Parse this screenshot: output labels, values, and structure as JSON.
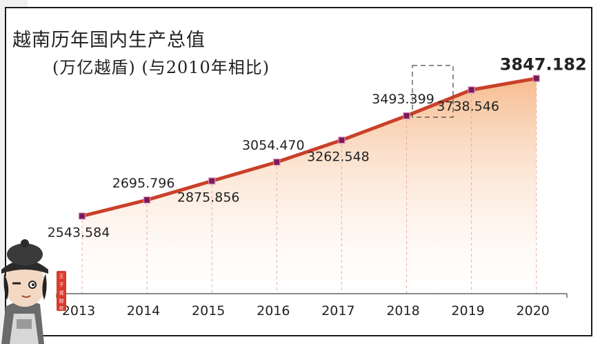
{
  "title_prefix": "越南",
  "title_main": "历年国内生产总值",
  "subtitle": "(万亿越盾) (与2010年相比)",
  "chart_data": {
    "type": "area",
    "title": "越南历年国内生产总值",
    "subtitle": "(万亿越盾) (与2010年相比)",
    "categories": [
      "2013",
      "2014",
      "2015",
      "2016",
      "2017",
      "2018",
      "2019",
      "2020"
    ],
    "values": [
      2543.584,
      2695.796,
      2875.856,
      3054.47,
      3262.548,
      3493.399,
      3738.546,
      3847.182
    ],
    "value_labels": [
      "2543.584",
      "2695.796",
      "2875.856",
      "3054.470",
      "3262.548",
      "3493.399",
      "3738.546",
      "3847.182"
    ],
    "ylim": [
      2200,
      3950
    ],
    "xlabel": "",
    "ylabel": "",
    "grid": false,
    "legend": "none",
    "colors": {
      "line": "#c9402a",
      "marker": "#7a1a5a",
      "fill_top": "#f6b98a",
      "fill_bottom": "#ffffff",
      "dash": "#e8a9a0"
    }
  },
  "mascot": {
    "badge_text": "王子说财经"
  }
}
